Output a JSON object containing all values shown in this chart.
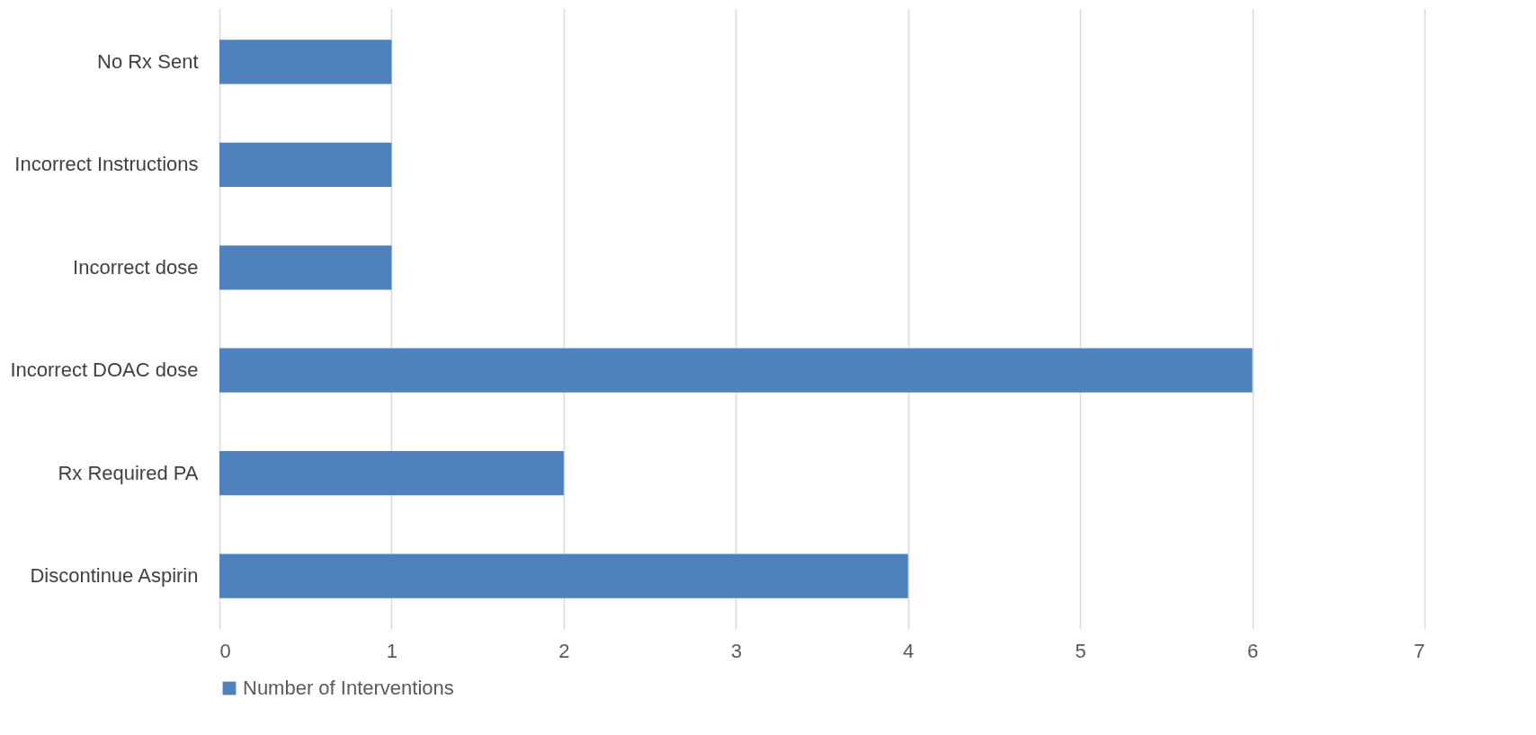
{
  "chart_data": {
    "type": "bar",
    "orientation": "horizontal",
    "categories": [
      "No Rx Sent",
      "Incorrect Instructions",
      "Incorrect dose",
      "Incorrect DOAC dose",
      "Rx Required PA",
      "Discontinue Aspirin"
    ],
    "series": [
      {
        "name": "Number of Interventions",
        "color": "#4f81bd",
        "values": [
          1,
          1,
          1,
          6,
          2,
          4
        ]
      }
    ],
    "xlim": [
      0,
      7
    ],
    "xticks": [
      0,
      1,
      2,
      3,
      4,
      5,
      6,
      7
    ],
    "grid": "x",
    "legend": "bottom"
  }
}
